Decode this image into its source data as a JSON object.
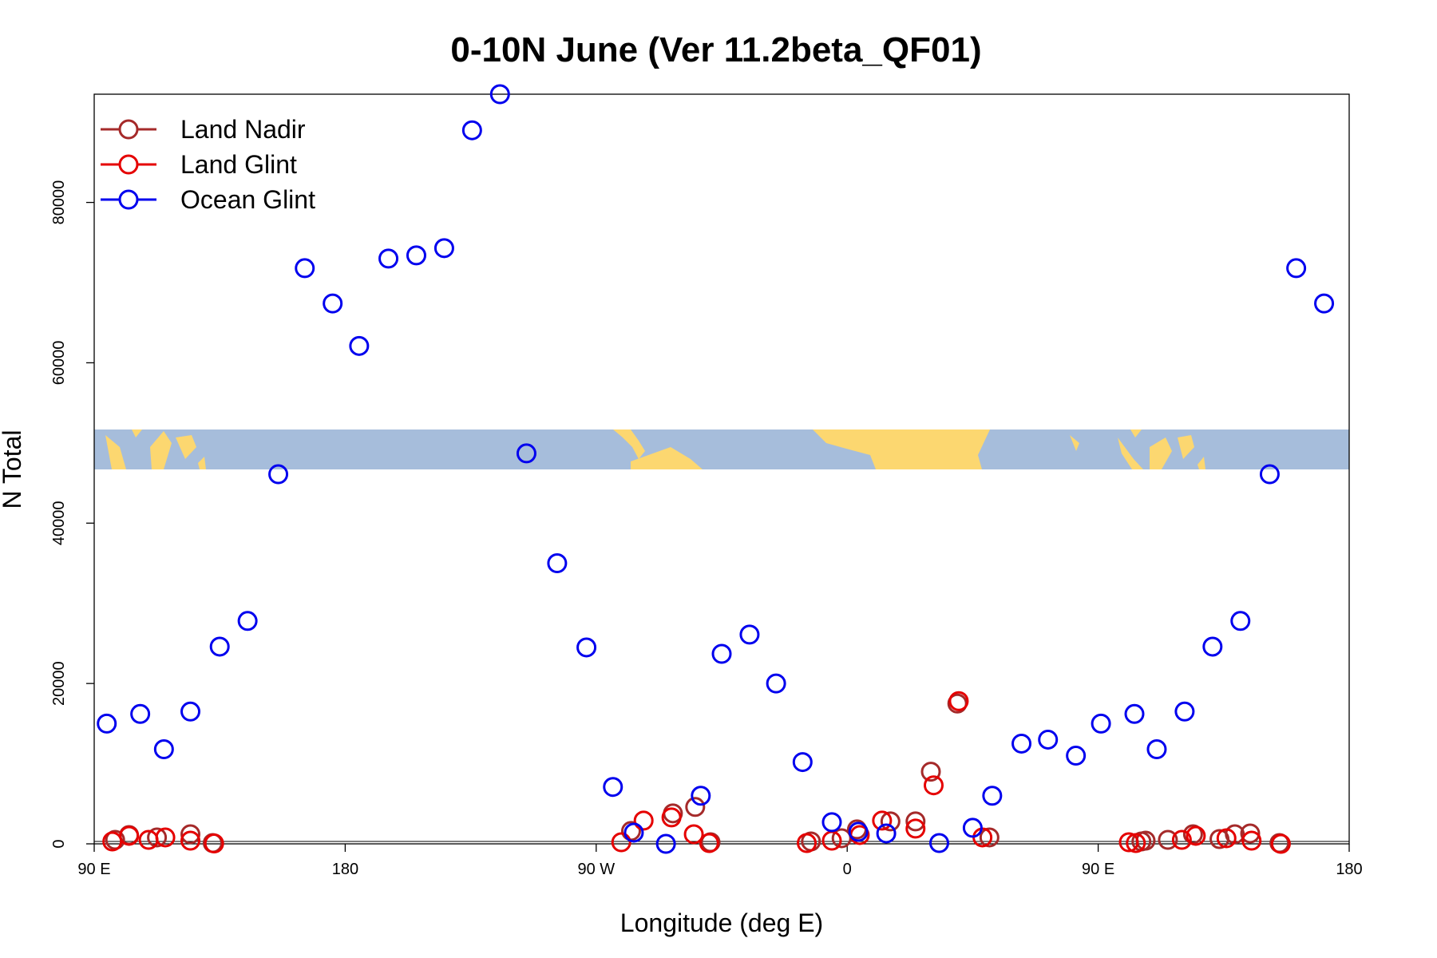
{
  "chart_data": {
    "type": "scatter",
    "title": "0-10N June (Ver 11.2beta_QF01)",
    "xlabel": "Longitude (deg E)",
    "ylabel": "N Total",
    "xlim": [
      90,
      540
    ],
    "ylim": [
      0,
      93500
    ],
    "x_ticks": [
      {
        "value": 90,
        "label": "90 E"
      },
      {
        "value": 180,
        "label": "180"
      },
      {
        "value": 270,
        "label": "90 W"
      },
      {
        "value": 360,
        "label": "0"
      },
      {
        "value": 450,
        "label": "90 E"
      },
      {
        "value": 540,
        "label": "180"
      }
    ],
    "y_ticks": [
      {
        "value": 0,
        "label": "0"
      },
      {
        "value": 20000,
        "label": "20000"
      },
      {
        "value": 40000,
        "label": "40000"
      },
      {
        "value": 60000,
        "label": "60000"
      },
      {
        "value": 80000,
        "label": "80000"
      }
    ],
    "legend_position": "top-left",
    "map_strip": {
      "band": "0-10N",
      "ocean_color": "#a6bddb",
      "land_color": "#fcd770"
    },
    "series": [
      {
        "name": "Land Nadir",
        "color": "#a52a2a",
        "points": [
          [
            97.5,
            500
          ],
          [
            102.5,
            1100
          ],
          [
            112.5,
            800
          ],
          [
            124.5,
            1200
          ],
          [
            132.5,
            100
          ],
          [
            282.5,
            1600
          ],
          [
            297.5,
            3800
          ],
          [
            305.5,
            4600
          ],
          [
            311,
            200
          ],
          [
            347,
            300
          ],
          [
            358,
            700
          ],
          [
            363.5,
            1800
          ],
          [
            375.5,
            2800
          ],
          [
            384.5,
            2800
          ],
          [
            390,
            9000
          ],
          [
            399.5,
            17500
          ],
          [
            411,
            800
          ],
          [
            465.5,
            300
          ],
          [
            467,
            400
          ],
          [
            475,
            500
          ],
          [
            484,
            1200
          ],
          [
            493.5,
            600
          ],
          [
            499,
            1200
          ],
          [
            504.5,
            1300
          ],
          [
            515,
            100
          ]
        ]
      },
      {
        "name": "Land Glint",
        "color": "#e50000",
        "points": [
          [
            96.5,
            300
          ],
          [
            102.5,
            1000
          ],
          [
            109.5,
            500
          ],
          [
            115.5,
            800
          ],
          [
            124.5,
            400
          ],
          [
            133,
            50
          ],
          [
            279,
            200
          ],
          [
            287,
            2900
          ],
          [
            297,
            3300
          ],
          [
            305,
            1200
          ],
          [
            310.5,
            100
          ],
          [
            345.5,
            100
          ],
          [
            354.5,
            400
          ],
          [
            364.5,
            1100
          ],
          [
            372.5,
            2900
          ],
          [
            384.5,
            1900
          ],
          [
            391,
            7300
          ],
          [
            400,
            17800
          ],
          [
            408.5,
            800
          ],
          [
            461,
            200
          ],
          [
            463.5,
            100
          ],
          [
            480,
            500
          ],
          [
            485,
            1000
          ],
          [
            496,
            700
          ],
          [
            505,
            400
          ],
          [
            515.5,
            0
          ]
        ]
      },
      {
        "name": "Ocean Glint",
        "color": "#0000ee",
        "points": [
          [
            94.5,
            15000
          ],
          [
            106.5,
            16200
          ],
          [
            115,
            11800
          ],
          [
            124.5,
            16500
          ],
          [
            135,
            24600
          ],
          [
            145,
            27800
          ],
          [
            156,
            46100
          ],
          [
            165.5,
            71800
          ],
          [
            175.5,
            67400
          ],
          [
            185,
            62100
          ],
          [
            195.5,
            73000
          ],
          [
            205.5,
            73400
          ],
          [
            215.5,
            74300
          ],
          [
            225.5,
            89000
          ],
          [
            235.5,
            93500
          ],
          [
            245,
            48700
          ],
          [
            256,
            35000
          ],
          [
            266.5,
            24500
          ],
          [
            276,
            7100
          ],
          [
            283.5,
            1400
          ],
          [
            295,
            0
          ],
          [
            307.5,
            6000
          ],
          [
            315,
            23700
          ],
          [
            325,
            26100
          ],
          [
            334.5,
            20000
          ],
          [
            344,
            10200
          ],
          [
            354.5,
            2700
          ],
          [
            364,
            1500
          ],
          [
            374,
            1300
          ],
          [
            393,
            100
          ],
          [
            405,
            2000
          ],
          [
            412,
            6000
          ],
          [
            422.5,
            12500
          ],
          [
            432,
            13000
          ],
          [
            442,
            11000
          ],
          [
            451,
            15000
          ],
          [
            463,
            16200
          ],
          [
            471,
            11800
          ],
          [
            481,
            16500
          ],
          [
            491,
            24600
          ],
          [
            501,
            27800
          ],
          [
            511.5,
            46100
          ],
          [
            521,
            71800
          ],
          [
            531,
            67400
          ]
        ]
      }
    ]
  }
}
